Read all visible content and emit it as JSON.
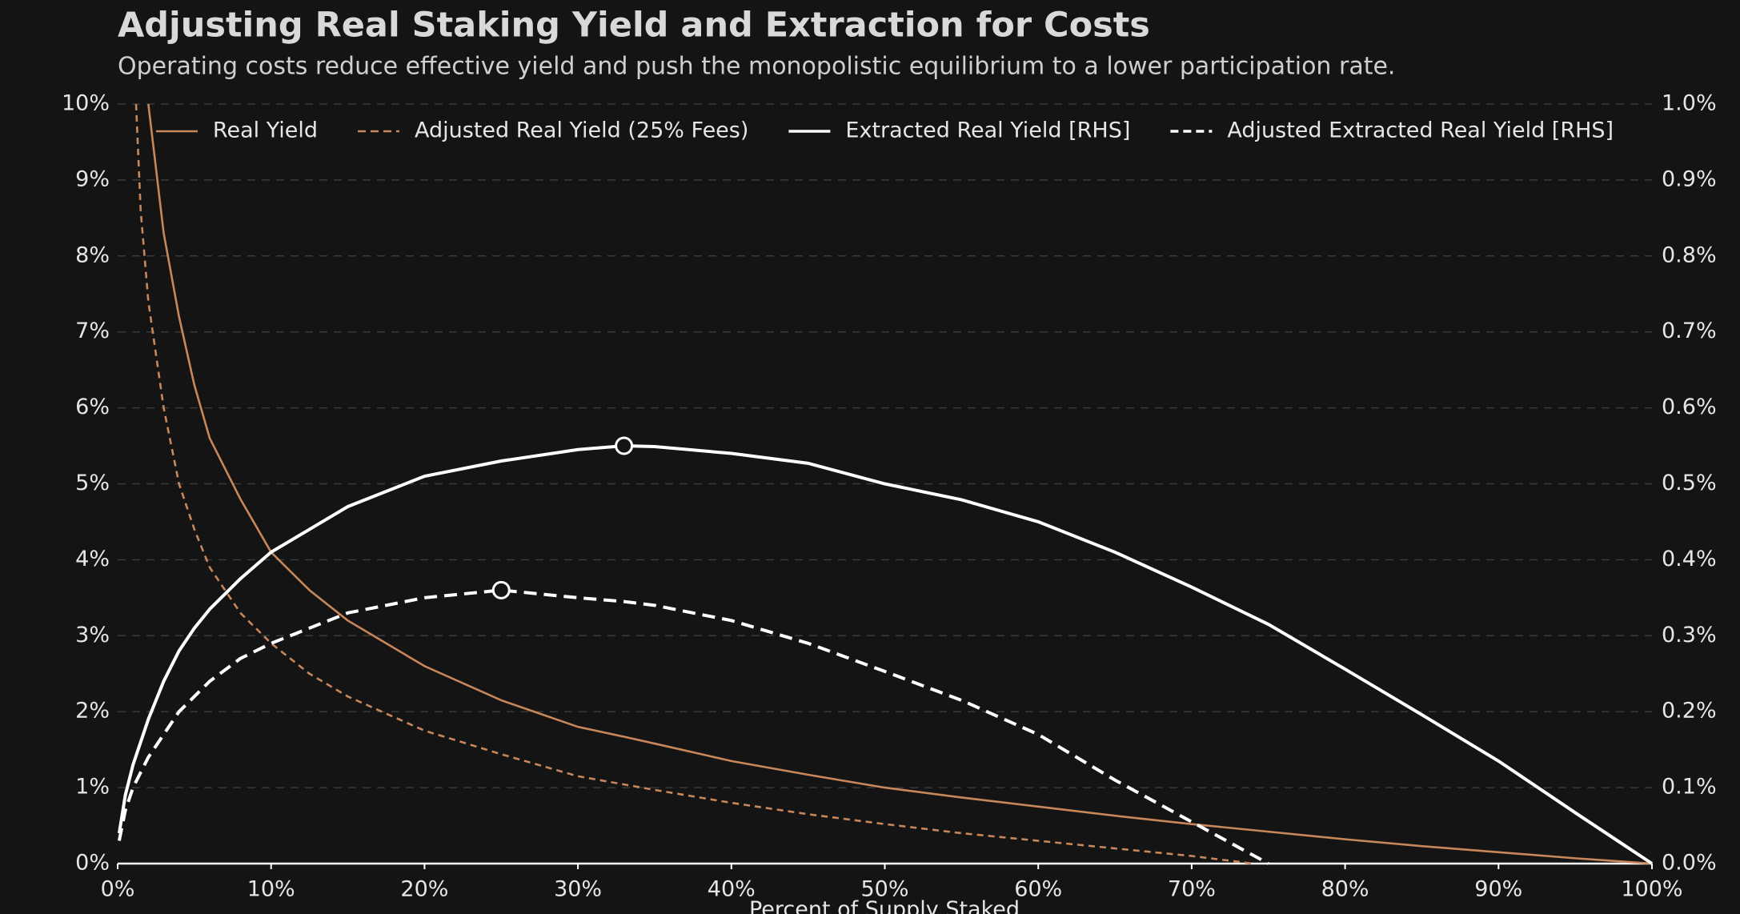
{
  "chart_data": {
    "type": "line",
    "title": "Adjusting Real Staking Yield and Extraction for Costs",
    "subtitle": "Operating costs reduce effective yield and push the monopolistic equilibrium to a lower participation rate.",
    "xlabel": "Percent of Supply Staked",
    "xlim": [
      0,
      100
    ],
    "xticks": [
      {
        "value": 0,
        "label": "0%"
      },
      {
        "value": 10,
        "label": "10%"
      },
      {
        "value": 20,
        "label": "20%"
      },
      {
        "value": 30,
        "label": "30%"
      },
      {
        "value": 40,
        "label": "40%"
      },
      {
        "value": 50,
        "label": "50%"
      },
      {
        "value": 60,
        "label": "60%"
      },
      {
        "value": 70,
        "label": "70%"
      },
      {
        "value": 80,
        "label": "80%"
      },
      {
        "value": 90,
        "label": "90%"
      },
      {
        "value": 100,
        "label": "100%"
      }
    ],
    "ylim": [
      0,
      10
    ],
    "yticks": [
      {
        "value": 0,
        "label": "0%"
      },
      {
        "value": 1,
        "label": "1%"
      },
      {
        "value": 2,
        "label": "2%"
      },
      {
        "value": 3,
        "label": "3%"
      },
      {
        "value": 4,
        "label": "4%"
      },
      {
        "value": 5,
        "label": "5%"
      },
      {
        "value": 6,
        "label": "6%"
      },
      {
        "value": 7,
        "label": "7%"
      },
      {
        "value": 8,
        "label": "8%"
      },
      {
        "value": 9,
        "label": "9%"
      },
      {
        "value": 10,
        "label": "10%"
      }
    ],
    "y2lim": [
      0,
      1
    ],
    "y2ticks": [
      {
        "value": 0,
        "label": "0.0%"
      },
      {
        "value": 0.1,
        "label": "0.1%"
      },
      {
        "value": 0.2,
        "label": "0.2%"
      },
      {
        "value": 0.3,
        "label": "0.3%"
      },
      {
        "value": 0.4,
        "label": "0.4%"
      },
      {
        "value": 0.5,
        "label": "0.5%"
      },
      {
        "value": 0.6,
        "label": "0.6%"
      },
      {
        "value": 0.7,
        "label": "0.7%"
      },
      {
        "value": 0.8,
        "label": "0.8%"
      },
      {
        "value": 0.9,
        "label": "0.9%"
      },
      {
        "value": 1,
        "label": "1.0%"
      }
    ],
    "grid": true,
    "legend": "upper center",
    "series": [
      {
        "name": "Real Yield",
        "color": "#c8875a",
        "linestyle": "solid",
        "x": [
          2,
          3,
          4,
          5,
          6,
          8,
          10,
          12.5,
          15,
          20,
          25,
          30,
          33,
          35,
          40,
          45,
          50,
          55,
          60,
          65,
          70,
          75,
          80,
          85,
          90,
          95,
          100
        ],
        "values": [
          10,
          8.3,
          7.2,
          6.3,
          5.6,
          4.8,
          4.1,
          3.6,
          3.2,
          2.6,
          2.15,
          1.8,
          1.67,
          1.58,
          1.35,
          1.17,
          1.0,
          0.87,
          0.75,
          0.63,
          0.52,
          0.42,
          0.32,
          0.23,
          0.15,
          0.07,
          0
        ]
      },
      {
        "name": "Adjusted Real Yield (25% Fees)",
        "color": "#c8875a",
        "linestyle": "dashed",
        "x": [
          1.2,
          1.5,
          2,
          3,
          4,
          5,
          6,
          8,
          10,
          12.5,
          15,
          20,
          25,
          30,
          35,
          40,
          45,
          50,
          55,
          60,
          65,
          70,
          74
        ],
        "values": [
          10,
          8.6,
          7.4,
          6.0,
          5.0,
          4.4,
          3.9,
          3.3,
          2.9,
          2.5,
          2.2,
          1.75,
          1.44,
          1.15,
          0.97,
          0.8,
          0.65,
          0.52,
          0.4,
          0.3,
          0.2,
          0.1,
          0
        ]
      },
      {
        "name": "Extracted Real Yield [RHS]",
        "color": "#ffffff",
        "linestyle": "solid",
        "axis": "y2",
        "x": [
          0.1,
          0.5,
          1,
          2,
          3,
          4,
          5,
          6,
          8,
          10,
          12.5,
          15,
          20,
          25,
          30,
          33,
          35,
          40,
          45,
          50,
          55,
          60,
          65,
          70,
          75,
          80,
          85,
          90,
          95,
          100
        ],
        "values": [
          0.04,
          0.09,
          0.13,
          0.19,
          0.24,
          0.28,
          0.31,
          0.335,
          0.375,
          0.41,
          0.44,
          0.47,
          0.51,
          0.53,
          0.545,
          0.55,
          0.549,
          0.54,
          0.527,
          0.5,
          0.479,
          0.45,
          0.41,
          0.364,
          0.315,
          0.256,
          0.196,
          0.135,
          0.067,
          0
        ]
      },
      {
        "name": "Adjusted Extracted Real Yield [RHS]",
        "color": "#ffffff",
        "linestyle": "dashed",
        "axis": "y2",
        "x": [
          0.1,
          0.5,
          1,
          2,
          3,
          4,
          5,
          6,
          8,
          10,
          12.5,
          15,
          20,
          25,
          30,
          33,
          35,
          40,
          45,
          50,
          55,
          60,
          65,
          70,
          75
        ],
        "values": [
          0.03,
          0.07,
          0.1,
          0.14,
          0.17,
          0.2,
          0.22,
          0.24,
          0.27,
          0.29,
          0.31,
          0.33,
          0.35,
          0.36,
          0.35,
          0.345,
          0.34,
          0.32,
          0.29,
          0.253,
          0.215,
          0.17,
          0.11,
          0.055,
          0
        ]
      }
    ],
    "markers": [
      {
        "x": 33,
        "y": 0.55,
        "axis": "y2"
      },
      {
        "x": 25,
        "y": 0.36,
        "axis": "y2"
      }
    ]
  }
}
